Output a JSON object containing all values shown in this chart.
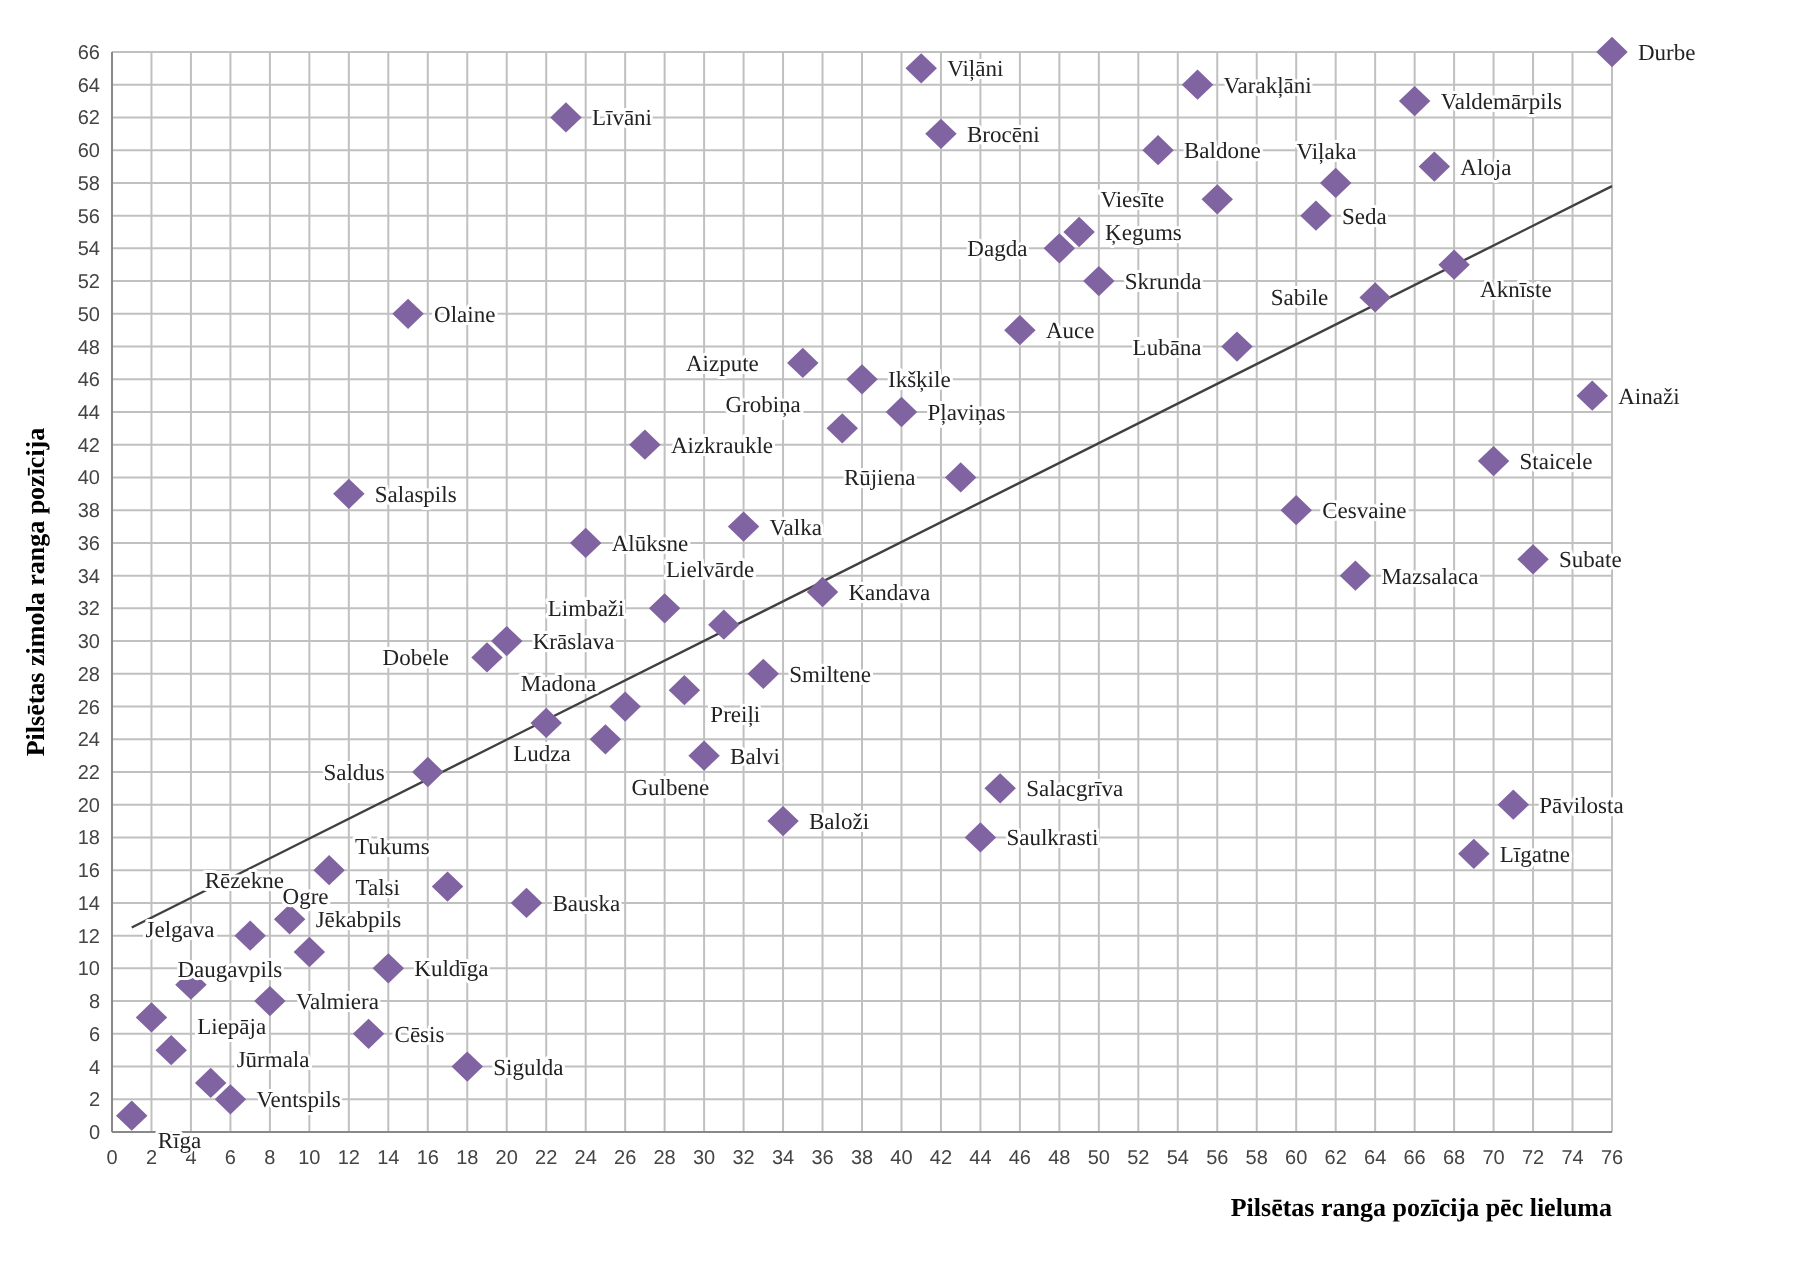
{
  "chart_data": {
    "type": "scatter",
    "xlabel": "Pilsētas ranga pozīcija pēc lieluma",
    "ylabel": "Pilsētas zimola ranga pozīcija",
    "xlim": [
      0,
      76
    ],
    "ylim": [
      0,
      66
    ],
    "xticks": [
      0,
      2,
      4,
      6,
      8,
      10,
      12,
      14,
      16,
      18,
      20,
      22,
      24,
      26,
      28,
      30,
      32,
      34,
      36,
      38,
      40,
      42,
      44,
      46,
      48,
      50,
      52,
      54,
      56,
      58,
      60,
      62,
      64,
      66,
      68,
      70,
      72,
      74,
      76
    ],
    "yticks": [
      0,
      2,
      4,
      6,
      8,
      10,
      12,
      14,
      16,
      18,
      20,
      22,
      24,
      26,
      28,
      30,
      32,
      34,
      36,
      38,
      40,
      42,
      44,
      46,
      48,
      50,
      52,
      54,
      56,
      58,
      60,
      62,
      64,
      66
    ],
    "grid": true,
    "marker": "diamond",
    "series": [
      {
        "color": "#8064a2",
        "x": [
          1,
          6,
          5,
          3,
          2,
          4,
          8,
          7,
          9,
          10,
          14,
          13,
          18,
          11,
          17,
          21,
          16,
          19,
          20,
          22,
          25,
          26,
          29,
          30,
          33,
          28,
          31,
          36,
          34,
          12,
          15,
          23,
          24,
          27,
          32,
          35,
          37,
          38,
          40,
          43,
          46,
          50,
          48,
          49,
          41,
          42,
          53,
          55,
          56,
          57,
          62,
          61,
          66,
          67,
          68,
          64,
          60,
          63,
          45,
          44,
          71,
          69,
          70,
          72,
          75,
          76
        ],
        "values": [
          1,
          2,
          3,
          5,
          7,
          9,
          8,
          12,
          13,
          11,
          10,
          6,
          4,
          16,
          15,
          14,
          22,
          29,
          30,
          25,
          24,
          26,
          27,
          23,
          28,
          32,
          31,
          33,
          19,
          39,
          50,
          62,
          36,
          42,
          37,
          47,
          43,
          46,
          44,
          40,
          49,
          52,
          54,
          55,
          65,
          61,
          60,
          64,
          57,
          48,
          58,
          56,
          63,
          59,
          53,
          51,
          38,
          34,
          21,
          18,
          20,
          17,
          41,
          35,
          45,
          66
        ]
      },
      {
        "type": "line",
        "marker": "none",
        "color": "#404040",
        "x": [
          1,
          76
        ],
        "values": [
          12.5,
          57.8
        ]
      }
    ],
    "annotations": [
      {
        "text": "Rīga",
        "x": 1,
        "y": 1
      },
      {
        "text": "Ventspils",
        "x": 6,
        "y": 2
      },
      {
        "text": "Jūrmala",
        "x": 5,
        "y": 3
      },
      {
        "text": "Liepāja",
        "x": 3,
        "y": 5
      },
      {
        "text": "Daugavpils",
        "x": 2,
        "y": 7
      },
      {
        "text": "Jelgava",
        "x": 4,
        "y": 9
      },
      {
        "text": "Valmiera",
        "x": 8,
        "y": 8
      },
      {
        "text": "Rēzekne",
        "x": 7,
        "y": 12
      },
      {
        "text": "Jēkabpils",
        "x": 9,
        "y": 13
      },
      {
        "text": "Ogre",
        "x": 10,
        "y": 11
      },
      {
        "text": "Kuldīga",
        "x": 14,
        "y": 10
      },
      {
        "text": "Cēsis",
        "x": 13,
        "y": 6
      },
      {
        "text": "Sigulda",
        "x": 18,
        "y": 4
      },
      {
        "text": "Tukums",
        "x": 11,
        "y": 16
      },
      {
        "text": "Talsi",
        "x": 17,
        "y": 15
      },
      {
        "text": "Bauska",
        "x": 21,
        "y": 14
      },
      {
        "text": "Saldus",
        "x": 16,
        "y": 22
      },
      {
        "text": "Dobele",
        "x": 19,
        "y": 29
      },
      {
        "text": "Krāslava",
        "x": 20,
        "y": 30
      },
      {
        "text": "Ludza",
        "x": 22,
        "y": 25
      },
      {
        "text": "Gulbene",
        "x": 25,
        "y": 24
      },
      {
        "text": "Madona",
        "x": 26,
        "y": 26
      },
      {
        "text": "Preiļi",
        "x": 29,
        "y": 27
      },
      {
        "text": "Balvi",
        "x": 30,
        "y": 23
      },
      {
        "text": "Smiltene",
        "x": 33,
        "y": 28
      },
      {
        "text": "Limbaži",
        "x": 28,
        "y": 32
      },
      {
        "text": "Lielvārde",
        "x": 31,
        "y": 31
      },
      {
        "text": "Kandava",
        "x": 36,
        "y": 33
      },
      {
        "text": "Baloži",
        "x": 34,
        "y": 19
      },
      {
        "text": "Salaspils",
        "x": 12,
        "y": 39
      },
      {
        "text": "Olaine",
        "x": 15,
        "y": 50
      },
      {
        "text": "Līvāni",
        "x": 23,
        "y": 62
      },
      {
        "text": "Alūksne",
        "x": 24,
        "y": 36
      },
      {
        "text": "Aizkraukle",
        "x": 27,
        "y": 42
      },
      {
        "text": "Valka",
        "x": 32,
        "y": 37
      },
      {
        "text": "Aizpute",
        "x": 35,
        "y": 47
      },
      {
        "text": "Grobiņa",
        "x": 37,
        "y": 43
      },
      {
        "text": "Ikšķile",
        "x": 38,
        "y": 46
      },
      {
        "text": "Pļaviņas",
        "x": 40,
        "y": 44
      },
      {
        "text": "Rūjiena",
        "x": 43,
        "y": 40
      },
      {
        "text": "Auce",
        "x": 46,
        "y": 49
      },
      {
        "text": "Skrunda",
        "x": 50,
        "y": 52
      },
      {
        "text": "Dagda",
        "x": 48,
        "y": 54
      },
      {
        "text": "Ķegums",
        "x": 49,
        "y": 55
      },
      {
        "text": "Viļāni",
        "x": 41,
        "y": 65
      },
      {
        "text": "Brocēni",
        "x": 42,
        "y": 61
      },
      {
        "text": "Baldone",
        "x": 53,
        "y": 60
      },
      {
        "text": "Varakļāni",
        "x": 55,
        "y": 64
      },
      {
        "text": "Viesīte",
        "x": 56,
        "y": 57
      },
      {
        "text": "Lubāna",
        "x": 57,
        "y": 48
      },
      {
        "text": "Viļaka",
        "x": 62,
        "y": 58
      },
      {
        "text": "Seda",
        "x": 61,
        "y": 56
      },
      {
        "text": "Valdemārpils",
        "x": 66,
        "y": 63
      },
      {
        "text": "Aloja",
        "x": 67,
        "y": 59
      },
      {
        "text": "Aknīste",
        "x": 68,
        "y": 53
      },
      {
        "text": "Sabile",
        "x": 64,
        "y": 51
      },
      {
        "text": "Cesvaine",
        "x": 60,
        "y": 38
      },
      {
        "text": "Mazsalaca",
        "x": 63,
        "y": 34
      },
      {
        "text": "Salacgrīva",
        "x": 45,
        "y": 21
      },
      {
        "text": "Saulkrasti",
        "x": 44,
        "y": 18
      },
      {
        "text": "Pāvilosta",
        "x": 71,
        "y": 20
      },
      {
        "text": "Līgatne",
        "x": 69,
        "y": 17
      },
      {
        "text": "Staicele",
        "x": 70,
        "y": 41
      },
      {
        "text": "Subate",
        "x": 72,
        "y": 35
      },
      {
        "text": "Ainaži",
        "x": 75,
        "y": 45
      },
      {
        "text": "Durbe",
        "x": 76,
        "y": 66
      }
    ]
  }
}
